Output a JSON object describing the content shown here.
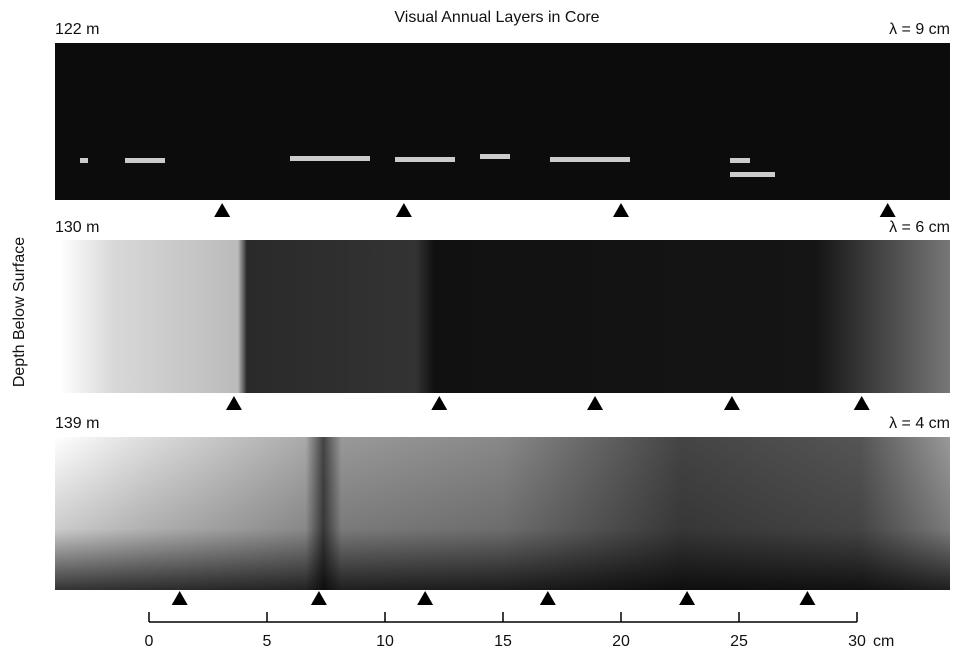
{
  "chart_data": {
    "type": "strip",
    "title": "Visual Annual Layers in Core",
    "ylabel": "Depth Below Surface",
    "xlim": [
      0,
      30
    ],
    "xticks": [
      0,
      5,
      10,
      15,
      20,
      25,
      30
    ],
    "xunit": "cm",
    "panels": [
      {
        "depth": "122 m",
        "wavelength": "λ = 9 cm",
        "markers": [
          3.1,
          10.8,
          20.0,
          31.3
        ]
      },
      {
        "depth": "130 m",
        "wavelength": "λ = 6 cm",
        "markers": [
          3.6,
          12.3,
          18.9,
          24.7,
          30.2
        ]
      },
      {
        "depth": "139 m",
        "wavelength": "λ = 4 cm",
        "markers": [
          1.3,
          7.2,
          11.7,
          16.9,
          22.8,
          27.9
        ]
      }
    ]
  }
}
